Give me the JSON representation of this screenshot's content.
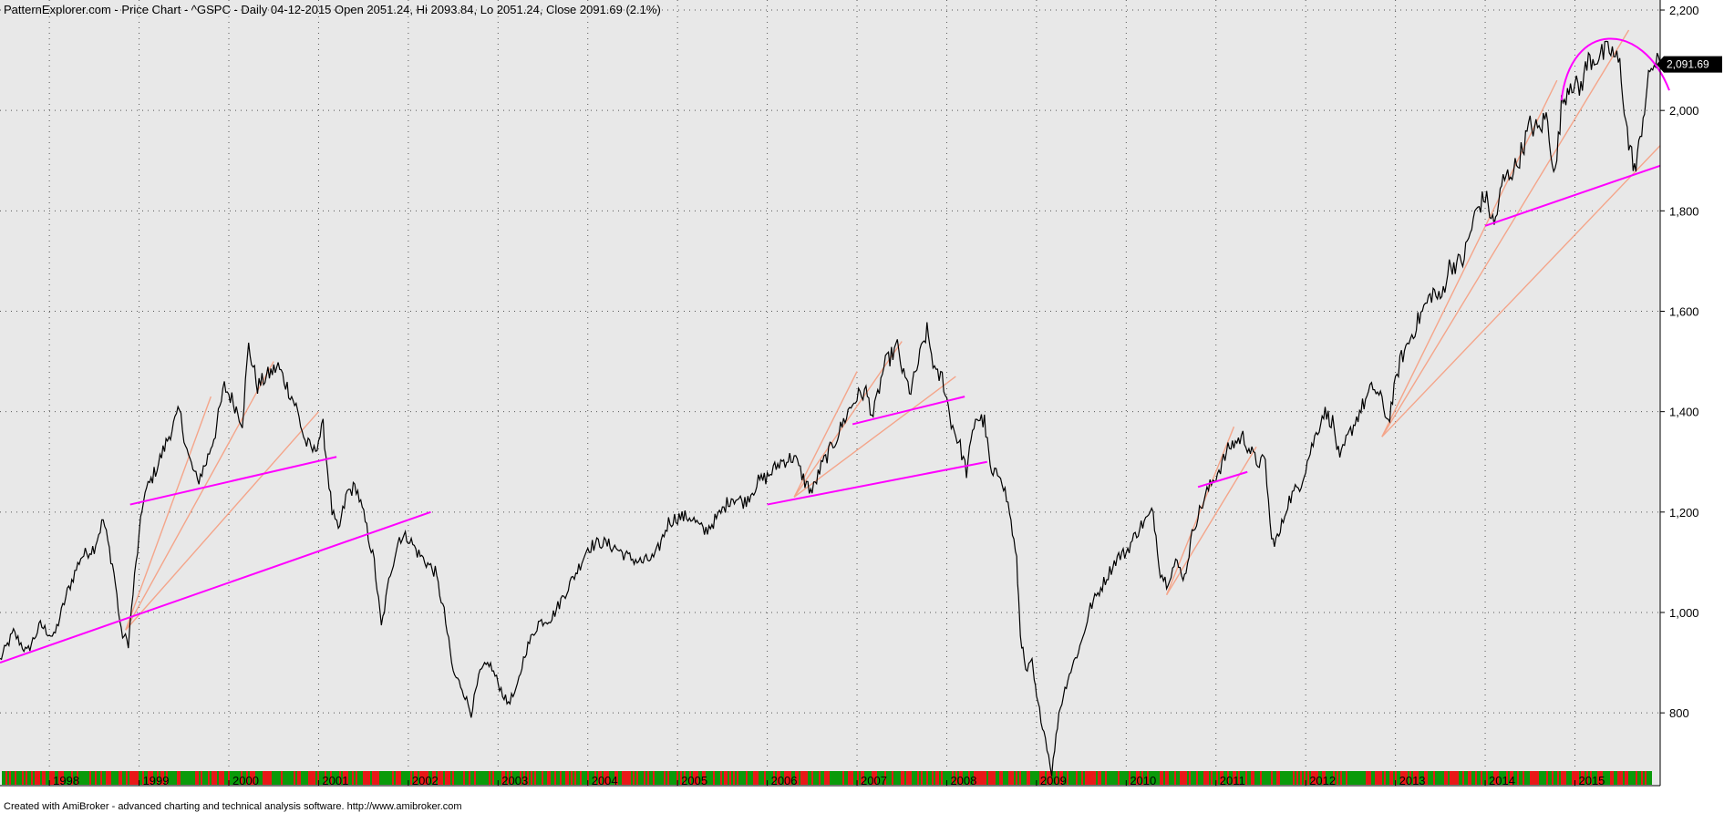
{
  "header": {
    "title": "PatternExplorer.com - Price Chart - ^GSPC - Daily 04-12-2015 Open 2051.24, Hi 2093.84, Lo 2051.24, Close 2091.69 (2.1%)"
  },
  "footer": {
    "credit": "Created with AmiBroker - advanced charting and technical analysis software. http://www.amibroker.com"
  },
  "last_price_label": "2,091.69",
  "colors": {
    "plot_background": "#e8e8e8",
    "price_line": "#000000",
    "trendline_primary": "#ff00ff",
    "trendline_fan": "#f4a58a",
    "volume_up": "#0a9a0a",
    "volume_down": "#e81818"
  },
  "chart_data": {
    "type": "line",
    "title": "PatternExplorer.com - Price Chart - ^GSPC - Daily 04-12-2015",
    "symbol": "^GSPC",
    "ohlc_last": {
      "date": "04-12-2015",
      "open": 2051.24,
      "high": 2093.84,
      "low": 2051.24,
      "close": 2091.69,
      "change_pct": 2.1
    },
    "x_tick_labels": [
      "1998",
      "1999",
      "2000",
      "2001",
      "2002",
      "2003",
      "2004",
      "2005",
      "2006",
      "2007",
      "2008",
      "2009",
      "2010",
      "2011",
      "2012",
      "2013",
      "2014",
      "2015"
    ],
    "y_tick_labels": [
      "800",
      "1,000",
      "1,200",
      "1,400",
      "1,600",
      "1,800",
      "2,000",
      "2,200"
    ],
    "y_ticks": [
      800,
      1000,
      1200,
      1400,
      1600,
      1800,
      2000,
      2200
    ],
    "ylim": [
      655,
      2220
    ],
    "xlim": [
      1997.45,
      2015.95
    ],
    "grid": true,
    "series": [
      {
        "points": [
          [
            1997.45,
            905
          ],
          [
            1997.6,
            960
          ],
          [
            1997.75,
            920
          ],
          [
            1997.9,
            975
          ],
          [
            1998.05,
            950
          ],
          [
            1998.2,
            1040
          ],
          [
            1998.35,
            1110
          ],
          [
            1998.5,
            1130
          ],
          [
            1998.6,
            1185
          ],
          [
            1998.72,
            1080
          ],
          [
            1998.8,
            960
          ],
          [
            1998.88,
            940
          ],
          [
            1998.95,
            1070
          ],
          [
            1999.05,
            1230
          ],
          [
            1999.2,
            1290
          ],
          [
            1999.35,
            1360
          ],
          [
            1999.45,
            1400
          ],
          [
            1999.55,
            1310
          ],
          [
            1999.65,
            1260
          ],
          [
            1999.75,
            1300
          ],
          [
            1999.85,
            1360
          ],
          [
            1999.95,
            1450
          ],
          [
            2000.05,
            1420
          ],
          [
            2000.15,
            1380
          ],
          [
            2000.22,
            1530
          ],
          [
            2000.32,
            1450
          ],
          [
            2000.42,
            1470
          ],
          [
            2000.55,
            1490
          ],
          [
            2000.65,
            1450
          ],
          [
            2000.75,
            1410
          ],
          [
            2000.85,
            1340
          ],
          [
            2000.95,
            1320
          ],
          [
            2001.05,
            1370
          ],
          [
            2001.15,
            1200
          ],
          [
            2001.22,
            1160
          ],
          [
            2001.32,
            1240
          ],
          [
            2001.42,
            1250
          ],
          [
            2001.52,
            1180
          ],
          [
            2001.62,
            1100
          ],
          [
            2001.7,
            970
          ],
          [
            2001.8,
            1080
          ],
          [
            2001.9,
            1150
          ],
          [
            2002.0,
            1150
          ],
          [
            2002.1,
            1120
          ],
          [
            2002.2,
            1100
          ],
          [
            2002.3,
            1080
          ],
          [
            2002.4,
            1000
          ],
          [
            2002.5,
            880
          ],
          [
            2002.6,
            850
          ],
          [
            2002.7,
            800
          ],
          [
            2002.8,
            880
          ],
          [
            2002.9,
            900
          ],
          [
            2003.0,
            860
          ],
          [
            2003.1,
            820
          ],
          [
            2003.2,
            840
          ],
          [
            2003.3,
            920
          ],
          [
            2003.45,
            980
          ],
          [
            2003.6,
            990
          ],
          [
            2003.75,
            1040
          ],
          [
            2003.9,
            1090
          ],
          [
            2004.0,
            1130
          ],
          [
            2004.15,
            1140
          ],
          [
            2004.3,
            1130
          ],
          [
            2004.45,
            1110
          ],
          [
            2004.6,
            1100
          ],
          [
            2004.75,
            1110
          ],
          [
            2004.9,
            1180
          ],
          [
            2005.0,
            1190
          ],
          [
            2005.15,
            1190
          ],
          [
            2005.3,
            1160
          ],
          [
            2005.45,
            1190
          ],
          [
            2005.6,
            1230
          ],
          [
            2005.75,
            1220
          ],
          [
            2005.9,
            1260
          ],
          [
            2006.0,
            1270
          ],
          [
            2006.15,
            1300
          ],
          [
            2006.3,
            1310
          ],
          [
            2006.42,
            1260
          ],
          [
            2006.5,
            1240
          ],
          [
            2006.6,
            1290
          ],
          [
            2006.75,
            1340
          ],
          [
            2006.9,
            1400
          ],
          [
            2007.0,
            1430
          ],
          [
            2007.1,
            1440
          ],
          [
            2007.18,
            1390
          ],
          [
            2007.3,
            1490
          ],
          [
            2007.45,
            1530
          ],
          [
            2007.52,
            1470
          ],
          [
            2007.6,
            1440
          ],
          [
            2007.7,
            1510
          ],
          [
            2007.78,
            1560
          ],
          [
            2007.88,
            1470
          ],
          [
            2007.95,
            1470
          ],
          [
            2008.05,
            1380
          ],
          [
            2008.15,
            1330
          ],
          [
            2008.22,
            1280
          ],
          [
            2008.32,
            1390
          ],
          [
            2008.42,
            1380
          ],
          [
            2008.5,
            1270
          ],
          [
            2008.6,
            1280
          ],
          [
            2008.7,
            1200
          ],
          [
            2008.78,
            1100
          ],
          [
            2008.82,
            960
          ],
          [
            2008.88,
            880
          ],
          [
            2008.95,
            900
          ],
          [
            2009.0,
            830
          ],
          [
            2009.1,
            750
          ],
          [
            2009.17,
            680
          ],
          [
            2009.25,
            800
          ],
          [
            2009.35,
            870
          ],
          [
            2009.5,
            940
          ],
          [
            2009.6,
            1010
          ],
          [
            2009.75,
            1060
          ],
          [
            2009.9,
            1110
          ],
          [
            2010.0,
            1120
          ],
          [
            2010.15,
            1170
          ],
          [
            2010.3,
            1200
          ],
          [
            2010.38,
            1080
          ],
          [
            2010.45,
            1060
          ],
          [
            2010.55,
            1100
          ],
          [
            2010.65,
            1070
          ],
          [
            2010.75,
            1170
          ],
          [
            2010.9,
            1240
          ],
          [
            2011.05,
            1290
          ],
          [
            2011.15,
            1330
          ],
          [
            2011.3,
            1350
          ],
          [
            2011.45,
            1300
          ],
          [
            2011.55,
            1300
          ],
          [
            2011.62,
            1140
          ],
          [
            2011.7,
            1150
          ],
          [
            2011.8,
            1220
          ],
          [
            2011.95,
            1260
          ],
          [
            2012.05,
            1320
          ],
          [
            2012.2,
            1400
          ],
          [
            2012.3,
            1380
          ],
          [
            2012.38,
            1300
          ],
          [
            2012.45,
            1340
          ],
          [
            2012.6,
            1400
          ],
          [
            2012.75,
            1450
          ],
          [
            2012.85,
            1420
          ],
          [
            2012.92,
            1380
          ],
          [
            2013.05,
            1500
          ],
          [
            2013.2,
            1560
          ],
          [
            2013.3,
            1600
          ],
          [
            2013.42,
            1640
          ],
          [
            2013.5,
            1620
          ],
          [
            2013.6,
            1690
          ],
          [
            2013.75,
            1700
          ],
          [
            2013.9,
            1800
          ],
          [
            2014.0,
            1830
          ],
          [
            2014.1,
            1770
          ],
          [
            2014.2,
            1860
          ],
          [
            2014.35,
            1890
          ],
          [
            2014.5,
            1970
          ],
          [
            2014.6,
            1960
          ],
          [
            2014.68,
            1990
          ],
          [
            2014.78,
            1870
          ],
          [
            2014.85,
            2010
          ],
          [
            2014.95,
            2060
          ],
          [
            2015.05,
            2040
          ],
          [
            2015.15,
            2100
          ],
          [
            2015.3,
            2110
          ],
          [
            2015.4,
            2120
          ],
          [
            2015.5,
            2090
          ],
          [
            2015.6,
            1930
          ],
          [
            2015.68,
            1880
          ],
          [
            2015.76,
            1990
          ],
          [
            2015.85,
            2090
          ],
          [
            2015.95,
            2092
          ]
        ]
      }
    ],
    "trendlines_primary": [
      [
        [
          1997.45,
          900
        ],
        [
          2002.25,
          1200
        ]
      ],
      [
        [
          1998.9,
          1215
        ],
        [
          2001.2,
          1310
        ]
      ],
      [
        [
          2006.0,
          1215
        ],
        [
          2008.45,
          1300
        ]
      ],
      [
        [
          2006.95,
          1375
        ],
        [
          2008.2,
          1430
        ]
      ],
      [
        [
          2010.8,
          1250
        ],
        [
          2011.35,
          1280
        ]
      ],
      [
        [
          2014.0,
          1770
        ],
        [
          2015.95,
          1890
        ]
      ]
    ],
    "trendlines_fan": [
      [
        [
          1998.85,
          965
        ],
        [
          2001.0,
          1400
        ]
      ],
      [
        [
          1998.85,
          965
        ],
        [
          2000.5,
          1500
        ]
      ],
      [
        [
          1998.85,
          965
        ],
        [
          1999.8,
          1430
        ]
      ],
      [
        [
          2006.3,
          1230
        ],
        [
          2008.1,
          1470
        ]
      ],
      [
        [
          2006.3,
          1230
        ],
        [
          2007.5,
          1540
        ]
      ],
      [
        [
          2006.3,
          1230
        ],
        [
          2007.0,
          1480
        ]
      ],
      [
        [
          2010.45,
          1035
        ],
        [
          2011.45,
          1330
        ]
      ],
      [
        [
          2010.45,
          1035
        ],
        [
          2011.2,
          1370
        ]
      ],
      [
        [
          2012.85,
          1350
        ],
        [
          2015.95,
          1930
        ]
      ],
      [
        [
          2012.85,
          1350
        ],
        [
          2015.6,
          2160
        ]
      ],
      [
        [
          2012.85,
          1350
        ],
        [
          2014.8,
          2060
        ]
      ]
    ],
    "arc_top": {
      "x_start": 2014.85,
      "x_end": 2015.95,
      "peak": 2135
    }
  }
}
